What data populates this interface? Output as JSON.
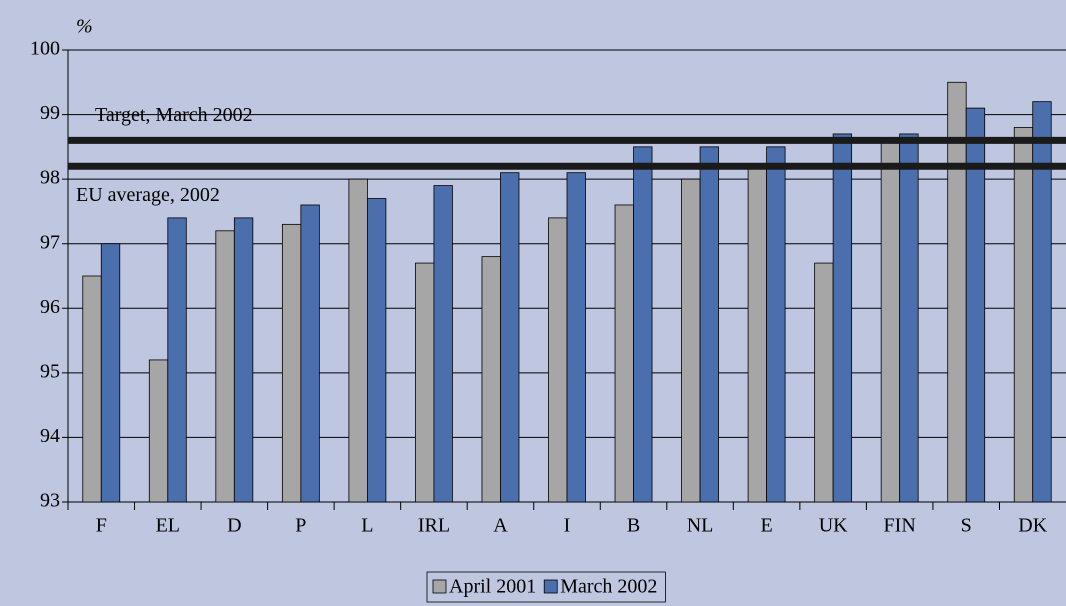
{
  "chart_data": {
    "type": "bar",
    "y_unit": "%",
    "categories": [
      "F",
      "EL",
      "D",
      "P",
      "L",
      "IRL",
      "A",
      "I",
      "B",
      "NL",
      "E",
      "UK",
      "FIN",
      "S",
      "DK"
    ],
    "series": [
      {
        "name": "April 2001",
        "color": "#a6a6a6",
        "values": [
          96.5,
          95.2,
          97.2,
          97.3,
          98.0,
          96.7,
          96.8,
          97.4,
          97.6,
          98.0,
          98.2,
          96.7,
          98.6,
          99.5,
          98.8
        ]
      },
      {
        "name": "March 2002",
        "color": "#4a6fac",
        "values": [
          97.0,
          97.4,
          97.4,
          97.6,
          97.7,
          97.9,
          98.1,
          98.1,
          98.5,
          98.5,
          98.5,
          98.7,
          98.7,
          99.1,
          99.2
        ]
      }
    ],
    "reference_lines": [
      {
        "label": "Target, March 2002",
        "value": 98.6
      },
      {
        "label": "EU average, 2002",
        "value": 98.2
      }
    ],
    "ylim": [
      93,
      100
    ],
    "yticks": [
      93,
      94,
      95,
      96,
      97,
      98,
      99,
      100
    ],
    "grid": true
  }
}
